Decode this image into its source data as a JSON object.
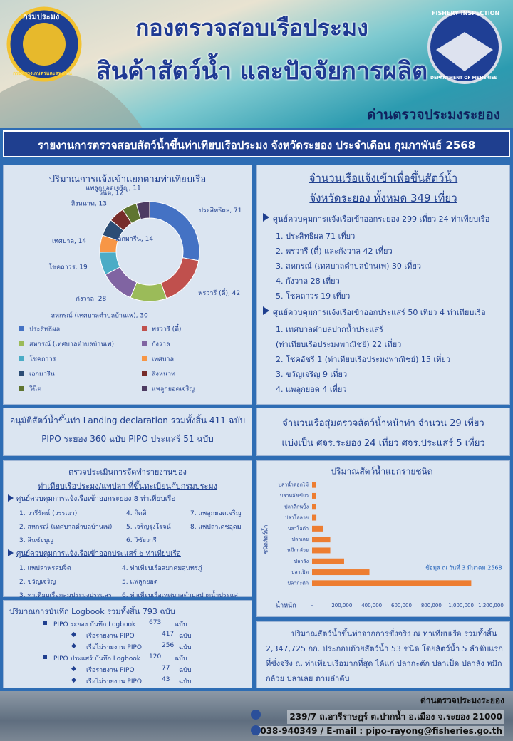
{
  "header": {
    "title": [
      "กองตรวจสอบเรือประมง",
      "สินค้าสัตว์น้ำ และปัจจัยการผลิต"
    ],
    "office": "ด่านตรวจประมงระยอง",
    "left_logo": [
      "กรมประมง",
      "กระทรวงเกษตรและสหกรณ์"
    ],
    "right_logo": [
      "FISHERY INSPECTION",
      "DEPARTMENT OF FISHERIES"
    ]
  },
  "banner": "รายงานการตรวจสอบสัตว์น้ำขึ้นท่าเทียบเรือประมง จังหวัดระยอง ประจำเดือน กุมภาพันธ์ 2568",
  "chart_data": [
    {
      "type": "donut",
      "title": "ปริมาณการแจ้งเข้าแยกตามท่าเทียบเรือ",
      "categories": [
        "ประสิทธิผล",
        "พรวารี (ตี๋)",
        "สหกรณ์ (เทศบาลตำบลบ้านเพ)",
        "กังวาล",
        "โชคถาวร",
        "เทศบาล",
        "เอกมารีน",
        "สิงหนาท",
        "วินิต",
        "แพลูกยอดเจริญ"
      ],
      "values": [
        71,
        42,
        30,
        28,
        19,
        14,
        14,
        13,
        12,
        11
      ],
      "value_labels": [
        "ประสิทธิผล, 71",
        "พรวารี (ตี๋), 42",
        "สหกรณ์ (เทศบาลตำบลบ้านเพ), 30",
        "กังวาล, 28",
        "โชคถาวร, 19",
        "เทศบาล, 14",
        "เอกมารีน, 14",
        "สิงหนาท, 13",
        "วินิต, 12",
        "แพลูกยอดเจริญ, 11"
      ],
      "colors": [
        "#4472c4",
        "#c0504d",
        "#9bbb59",
        "#8064a2",
        "#4bacc6",
        "#f79646",
        "#2c4d75",
        "#772c2a",
        "#5f7530",
        "#4d3b62"
      ],
      "legend": "bottom"
    },
    {
      "type": "barh",
      "title": "ปริมาณสัตว์น้ำแยกรายชนิด",
      "categories": [
        "ปลาน้ำดอกไม้",
        "ปลาหลังเขียว",
        "ปลาสีกุนบั้ง",
        "ปลาโอลาย",
        "ปลาโอดำ",
        "ปลาเลย",
        "หมึกกล้วย",
        "ปลาลัง",
        "ปลาเป็ด",
        "ปลากะตัก"
      ],
      "values": [
        24000,
        24000,
        24000,
        29000,
        73000,
        122000,
        122000,
        215000,
        385000,
        1068000
      ],
      "color": "#ed7d31",
      "xlabel": "น้ำหนัก",
      "ylabel": "ชนิดสัตว์น้ำ",
      "annotation": "ข้อมูล ณ วันที่ 3 มีนาคม 2568",
      "xlim": [
        0,
        1200000
      ],
      "xticks": [
        {
          "value": 0,
          "label": "-"
        },
        {
          "value": 200000,
          "label": "200,000"
        },
        {
          "value": 400000,
          "label": "400,000"
        },
        {
          "value": 600000,
          "label": "600,000"
        },
        {
          "value": 800000,
          "label": "800,000"
        },
        {
          "value": 1000000,
          "label": "1,000,000"
        },
        {
          "value": 1200000,
          "label": "1,200,000"
        }
      ]
    }
  ],
  "boats": {
    "title": [
      "จำนวนเรือแจ้งเข้าเพื่อขึ้นสัตว์น้ำ",
      "จังหวัดระยอง ทั้งหมด 349 เที่ยว"
    ],
    "groups": [
      {
        "heading": "ศูนย์ควบคุมการแจ้งเรือเข้าออกระยอง 299 เที่ยว 24 ท่าเทียบเรือ",
        "items": [
          "1. ประสิทธิผล 71 เที่ยว",
          "2. พรวารี (ตี๋) และกังวาล 42 เที่ยว",
          "3. สหกรณ์ (เทศบาลตำบลบ้านเพ) 30 เที่ยว",
          "4. กังวาล 28 เที่ยว",
          "5. โชคถาวร 19 เที่ยว"
        ]
      },
      {
        "heading": "ศูนย์ควบคุมการแจ้งเรือเข้าออกประแสร์ 50 เที่ยว 4 ท่าเทียบเรือ",
        "items": [
          "1. เทศบาลตำบลปากน้ำประแสร์",
          "(ท่าเทียบเรือประมงพาณิชย์) 22 เที่ยว",
          "2. โชคอัชรี 1 (ท่าเทียบเรือประมงพาณิชย์) 15 เที่ยว",
          "3. ขวัญเจริญ 9 เที่ยว",
          "4. แพลูกยอด 4 เที่ยว"
        ]
      }
    ]
  },
  "landing": [
    "อนุมัติสัตว์น้ำขึ้นท่า Landing declaration รวมทั้งสิ้น 411 ฉบับ",
    "PIPO ระยอง 360 ฉบับ PIPO ประแสร์ 51 ฉบับ"
  ],
  "inspection": [
    "จำนวนเรือสุ่มตรวจสัตว์น้ำหน้าท่า จำนวน 29 เที่ยว",
    "แบ่งเป็น ศจร.ระยอง 24 เที่ยว ศจร.ประแสร์ 5 เที่ยว"
  ],
  "assessment": {
    "title": [
      "ตรวจประเมินการจัดทำรายงานของ",
      "ท่าเทียบเรือประมง/แพปลา ที่ขึ้นทะเบียนกับกรมประมง"
    ],
    "groups": [
      {
        "heading": "ศูนย์ควบคุมการแจ้งเรือเข้าออกระยอง 8 ท่าเทียบเรือ",
        "items": [
          "1. วารีรัตน์ (วรรณา)",
          "4. กิตติ",
          "7. แพลูกยอดเจริญ",
          "2. สหกรณ์ (เทศบาลตำบลบ้านเพ)",
          "5. เจริญรุ่งโรจน์",
          "8. แพปลาเดชอุดม",
          "3. สินชัยบุญ",
          "6. วิชัยวารี"
        ]
      },
      {
        "heading": "ศูนย์ควบคุมการแจ้งเรือเข้าออกประแสร์ 6 ท่าเทียบเรือ",
        "items": [
          "1. แพปลาพรสมจิต",
          "4. ท่าเทียบเรือสมาคมสุนทรภู่",
          "2. ขวัญเจริญ",
          "5. แพลูกยอด",
          "3. ท่าเทียบเรือกลุ่มประมงประแสร",
          "6. ท่าเทียบเรือเทศบาลตำบลปากน้ำประแส"
        ]
      }
    ]
  },
  "logbook": {
    "title": "ปริมาณการบันทึก Logbook รวมทั้งสิ้น 793 ฉบับ",
    "rows": [
      [
        "PIPO ระยอง บันทึก Logbook",
        "673",
        "ฉบับ"
      ],
      [
        "เรือรายงาน PIPO",
        "417",
        "ฉบับ"
      ],
      [
        "เรือไม่รายงาน PIPO",
        "256",
        "ฉบับ"
      ],
      [
        "PIPO ประแสร์ บันทึก Logbook",
        "120",
        "ฉบับ"
      ],
      [
        "เรือรายงาน PIPO",
        "77",
        "ฉบับ"
      ],
      [
        "เรือไม่รายงาน PIPO",
        "43",
        "ฉบับ"
      ]
    ]
  },
  "summary": "ปริมาณสัตว์น้ำขึ้นท่าจากการชั่งจริง ณ ท่าเทียบเรือ รวมทั้งสิ้น 2,347,725 กก. ประกอบด้วยสัตว์น้ำ 53 ชนิด โดยสัตว์น้ำ 5 ลำดับแรกที่ชั่งจริง ณ ท่าเทียบเรือมากที่สุด ได้แก่ ปลากะตัก ปลาเป็ด ปลาลัง หมึกกล้วย ปลาเลย ตามลำดับ",
  "footer": {
    "office": "ด่านตรวจประมงระยอง",
    "address": "239/7 ถ.อารีราษฎร์ ต.ปากน้ำ อ.เมือง จ.ระยอง 21000",
    "contact": "038-940349 / E-mail : pipo-rayong@fisheries.go.th"
  }
}
